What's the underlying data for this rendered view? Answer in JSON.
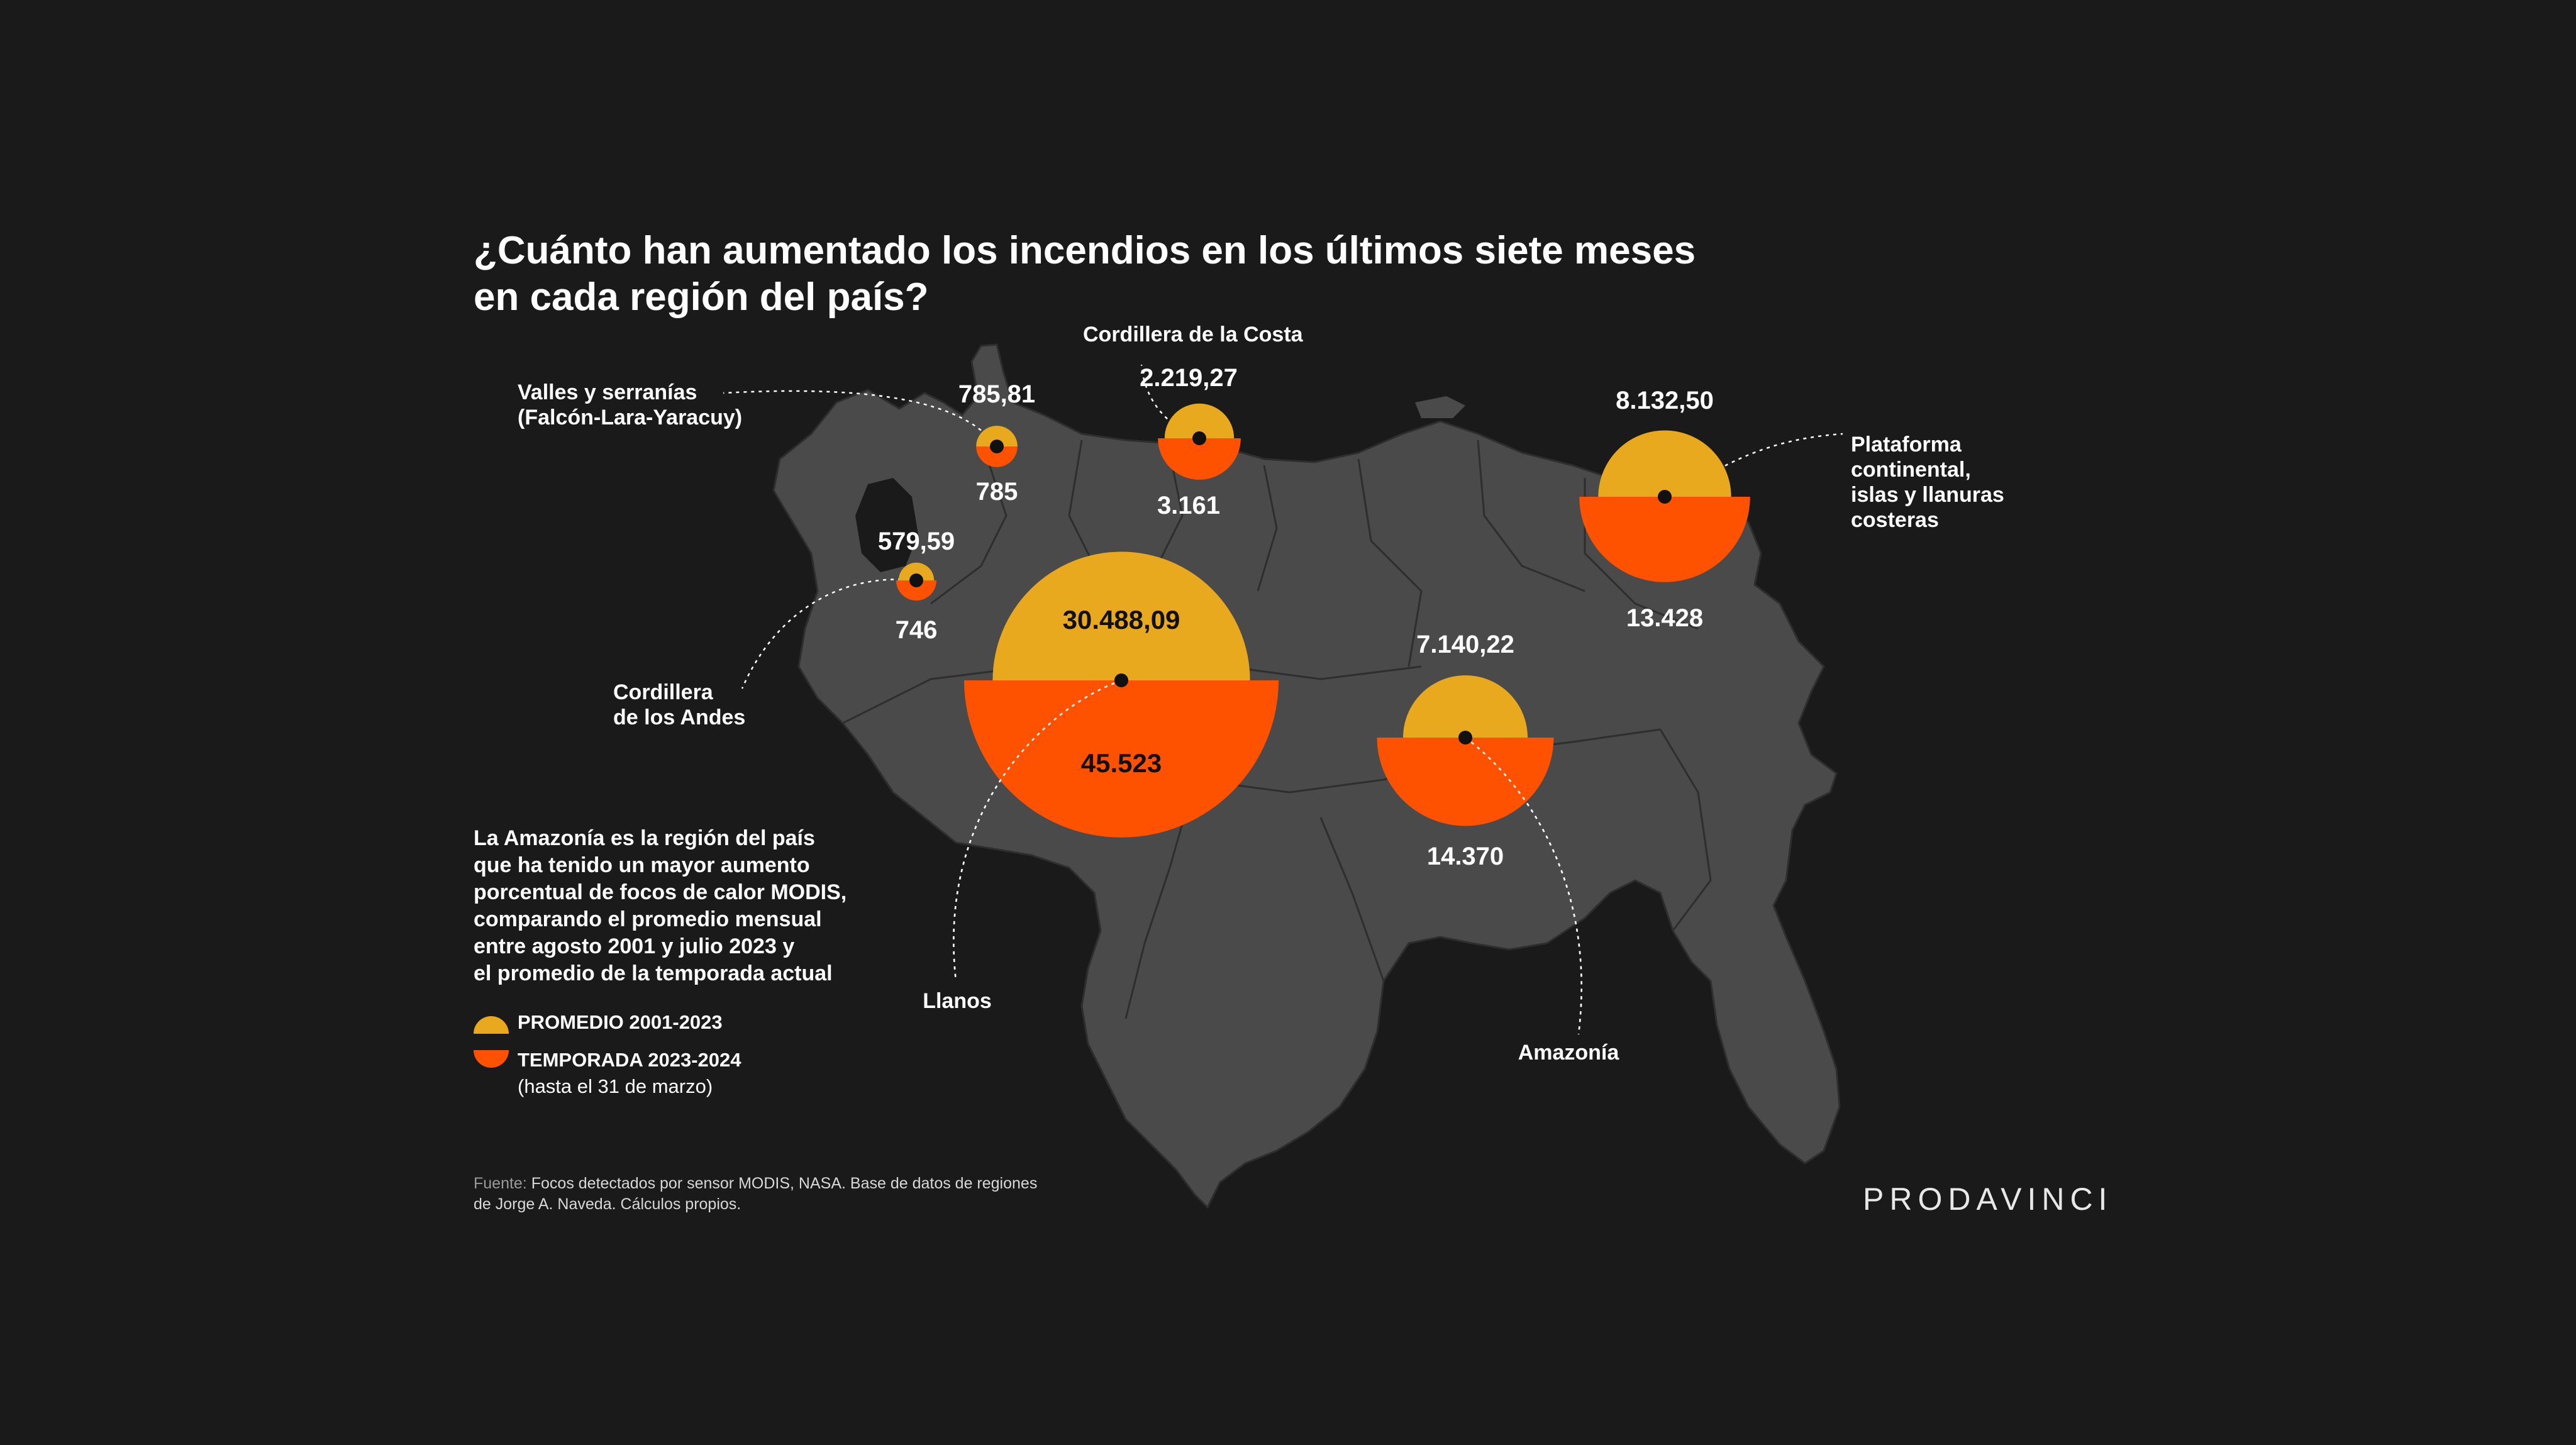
{
  "title": {
    "line1": "¿Cuánto han aumentado los incendios en los últimos siete meses",
    "line2": "en cada región del país?"
  },
  "note": [
    "La Amazonía es la región del país",
    "que ha tenido un mayor aumento",
    "porcentual de focos de calor MODIS,",
    "comparando el promedio mensual",
    "entre agosto 2001 y julio 2023 y",
    "el promedio de la temporada actual"
  ],
  "legend": {
    "promedio": "PROMEDIO 2001-2023",
    "temporada": "TEMPORADA 2023-2024",
    "temporada_sub": "(hasta el 31 de marzo)"
  },
  "source": {
    "label": "Fuente:",
    "line1": "Focos detectados por sensor MODIS, NASA. Base de datos de regiones",
    "line2": "de Jorge A. Naveda. Cálculos propios."
  },
  "logo": "PRODAVINCI",
  "colors": {
    "background": "#1a1a1a",
    "map": "#4a4a4a",
    "promedio": "#e8a91e",
    "temporada": "#ff5200"
  },
  "chart_data": {
    "type": "proportional-semicircles",
    "series": [
      {
        "name": "PROMEDIO 2001-2023"
      },
      {
        "name": "TEMPORADA 2023-2024"
      }
    ],
    "regions": [
      {
        "name_lines": [
          "Valles y serranías",
          "(Falcón-Lara-Yaracuy)"
        ],
        "promedio": 785.81,
        "promedio_label": "785,81",
        "temporada": 785,
        "temporada_label": "785"
      },
      {
        "name_lines": [
          "Cordillera de la Costa"
        ],
        "promedio": 2219.27,
        "promedio_label": "2.219,27",
        "temporada": 3161,
        "temporada_label": "3.161"
      },
      {
        "name_lines": [
          "Plataforma",
          "continental,",
          "islas y llanuras",
          "costeras"
        ],
        "promedio": 8132.5,
        "promedio_label": "8.132,50",
        "temporada": 13428,
        "temporada_label": "13.428"
      },
      {
        "name_lines": [
          "Cordillera",
          "de los Andes"
        ],
        "promedio": 579.59,
        "promedio_label": "579,59",
        "temporada": 746,
        "temporada_label": "746"
      },
      {
        "name_lines": [
          "Llanos"
        ],
        "promedio": 30488.09,
        "promedio_label": "30.488,09",
        "temporada": 45523,
        "temporada_label": "45.523"
      },
      {
        "name_lines": [
          "Amazonía"
        ],
        "promedio": 7140.22,
        "promedio_label": "7.140,22",
        "temporada": 14370,
        "temporada_label": "14.370"
      }
    ]
  }
}
